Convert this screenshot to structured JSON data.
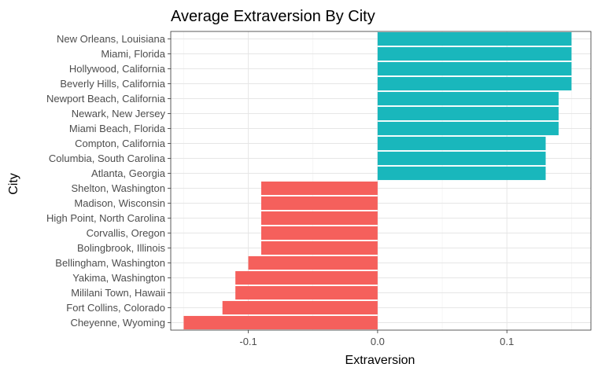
{
  "chart_data": {
    "type": "bar",
    "orientation": "horizontal",
    "title": "Average Extraversion By City",
    "xlabel": "Extraversion",
    "ylabel": "City",
    "xlim": [
      -0.16,
      0.165
    ],
    "xticks": [
      -0.1,
      0.0,
      0.1
    ],
    "xtick_labels": [
      "-0.1",
      "0.0",
      "0.1"
    ],
    "grid": true,
    "colors": {
      "positive": "#19b7bc",
      "negative": "#f5605c"
    },
    "categories": [
      "New Orleans, Louisiana",
      "Miami, Florida",
      "Hollywood, California",
      "Beverly Hills, California",
      "Newport Beach, California",
      "Newark, New Jersey",
      "Miami Beach, Florida",
      "Compton, California",
      "Columbia, South Carolina",
      "Atlanta, Georgia",
      "Shelton, Washington",
      "Madison, Wisconsin",
      "High Point, North Carolina",
      "Corvallis, Oregon",
      "Bolingbrook, Illinois",
      "Bellingham, Washington",
      "Yakima, Washington",
      "Mililani Town, Hawaii",
      "Fort Collins, Colorado",
      "Cheyenne, Wyoming"
    ],
    "values": [
      0.15,
      0.15,
      0.15,
      0.15,
      0.14,
      0.14,
      0.14,
      0.13,
      0.13,
      0.13,
      -0.09,
      -0.09,
      -0.09,
      -0.09,
      -0.09,
      -0.1,
      -0.11,
      -0.11,
      -0.12,
      -0.15
    ]
  }
}
